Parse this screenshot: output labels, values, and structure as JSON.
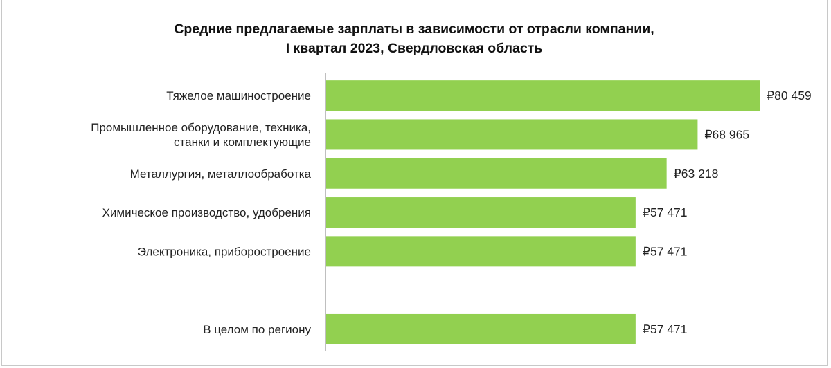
{
  "chart_data": {
    "type": "bar",
    "orientation": "horizontal",
    "title": [
      "Средние предлагаемые зарплаты в зависимости от отрасли компании,",
      "I квартал 2023, Свердловская область"
    ],
    "categories": [
      [
        "Тяжелое машиностроение"
      ],
      [
        "Промышленное оборудование, техника,",
        "станки и комплектующие"
      ],
      [
        "Металлургия,  металлообработка"
      ],
      [
        "Химическое производство, удобрения"
      ],
      [
        "Электроника, приборостроение"
      ],
      [],
      [
        "В целом по региону"
      ]
    ],
    "values": [
      80459,
      68965,
      63218,
      57471,
      57471,
      null,
      57471
    ],
    "data_labels": [
      "₽80 459",
      "₽68 965",
      "₽63 218",
      "₽57 471",
      "₽57 471",
      "",
      "₽57 471"
    ],
    "xlim": [
      0,
      80459
    ],
    "grid": false,
    "legend": "none",
    "colors": {
      "bar": "#92d050",
      "axis": "#bfbfbf"
    }
  }
}
